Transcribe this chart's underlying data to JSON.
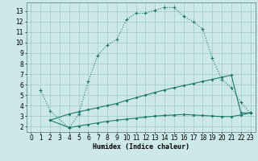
{
  "title": "",
  "xlabel": "Humidex (Indice chaleur)",
  "ylabel": "",
  "bg_color": "#cde8e8",
  "grid_color": "#aacccc",
  "line_color": "#1a7a6e",
  "xlim": [
    -0.5,
    23.5
  ],
  "ylim": [
    1.5,
    13.8
  ],
  "xticks": [
    0,
    1,
    2,
    3,
    4,
    5,
    6,
    7,
    8,
    9,
    10,
    11,
    12,
    13,
    14,
    15,
    16,
    17,
    18,
    19,
    20,
    21,
    22,
    23
  ],
  "yticks": [
    2,
    3,
    4,
    5,
    6,
    7,
    8,
    9,
    10,
    11,
    12,
    13
  ],
  "curve1_x": [
    1,
    2,
    4,
    5,
    6,
    7,
    8,
    9,
    10,
    11,
    12,
    13,
    14,
    15,
    16,
    17,
    18,
    19,
    20,
    21,
    22,
    23
  ],
  "curve1_y": [
    5.5,
    3.5,
    1.85,
    3.2,
    6.3,
    8.8,
    9.8,
    10.3,
    12.2,
    12.8,
    12.8,
    13.1,
    13.35,
    13.35,
    12.5,
    12.0,
    11.3,
    8.5,
    6.5,
    5.7,
    4.3,
    3.3
  ],
  "curve2_x": [
    2,
    4,
    5,
    6,
    7,
    8,
    9,
    10,
    11,
    12,
    13,
    14,
    15,
    16,
    17,
    18,
    19,
    20,
    21,
    22,
    23
  ],
  "curve2_y": [
    2.6,
    3.2,
    3.4,
    3.6,
    3.8,
    4.0,
    4.2,
    4.5,
    4.75,
    5.0,
    5.25,
    5.5,
    5.7,
    5.9,
    6.1,
    6.3,
    6.5,
    6.7,
    6.9,
    3.3,
    3.3
  ],
  "curve3_x": [
    2,
    4,
    5,
    6,
    7,
    8,
    9,
    10,
    11,
    12,
    13,
    14,
    15,
    16,
    17,
    18,
    19,
    20,
    21,
    22,
    23
  ],
  "curve3_y": [
    2.6,
    1.9,
    2.05,
    2.2,
    2.35,
    2.5,
    2.6,
    2.7,
    2.8,
    2.9,
    3.0,
    3.05,
    3.1,
    3.15,
    3.1,
    3.05,
    3.0,
    2.95,
    2.95,
    3.1,
    3.3
  ]
}
